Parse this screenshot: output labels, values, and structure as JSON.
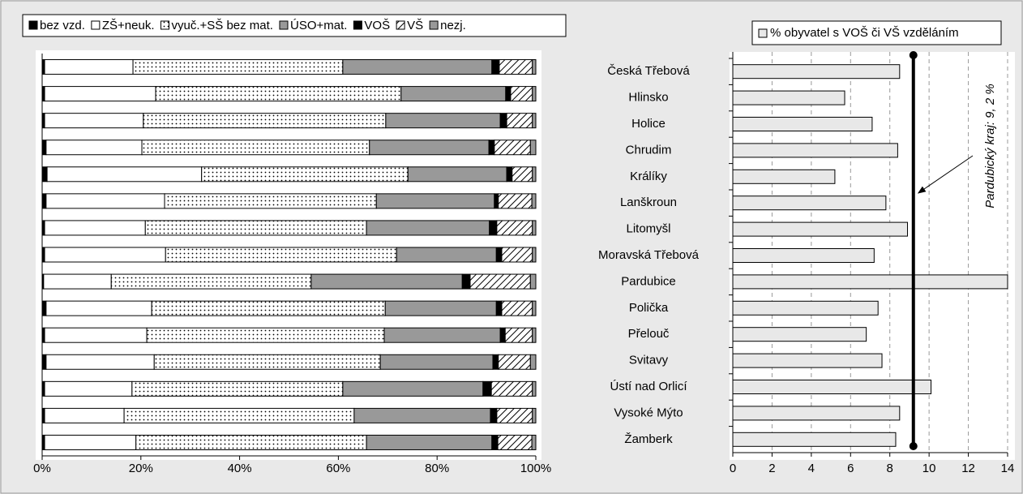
{
  "chart_data": [
    {
      "type": "stacked-bar-horizontal",
      "series": [
        {
          "name": "bez vzd.",
          "color": "#000000",
          "values": [
            0.5,
            0.5,
            0.5,
            0.8,
            1.0,
            0.8,
            0.5,
            0.5,
            0.3,
            0.8,
            0.5,
            0.8,
            0.5,
            0.5,
            0.5
          ]
        },
        {
          "name": "ZŠ+neuk.",
          "color": "#ffffff",
          "values": [
            17.9,
            22.5,
            20.0,
            19.4,
            31.3,
            24.0,
            20.4,
            24.5,
            13.7,
            21.4,
            20.7,
            21.9,
            17.7,
            16.1,
            18.5
          ]
        },
        {
          "name": "vyuč.+SŠ bez mat.",
          "color": "#ffffff",
          "pattern": "dots",
          "values": [
            42.5,
            49.7,
            49.1,
            46.1,
            41.8,
            42.9,
            44.8,
            46.8,
            40.5,
            47.3,
            48.1,
            45.8,
            42.7,
            46.6,
            46.7
          ]
        },
        {
          "name": "ÚSO+mat.",
          "color": "#999999",
          "values": [
            30.2,
            21.2,
            23.2,
            24.2,
            20.0,
            23.9,
            24.9,
            20.2,
            30.6,
            22.5,
            23.5,
            22.8,
            28.4,
            27.6,
            25.4
          ]
        },
        {
          "name": "VOŠ",
          "color": "#000000",
          "values": [
            1.5,
            1.0,
            1.3,
            1.1,
            1.1,
            0.8,
            1.5,
            1.1,
            1.6,
            1.1,
            1.0,
            1.1,
            1.7,
            1.3,
            1.2
          ]
        },
        {
          "name": "VŠ",
          "color": "#ffffff",
          "pattern": "hatch",
          "values": [
            6.7,
            4.4,
            5.2,
            7.3,
            4.1,
            6.8,
            7.2,
            6.2,
            12.2,
            6.2,
            5.5,
            6.5,
            8.3,
            7.2,
            6.9
          ]
        },
        {
          "name": "nezj.",
          "color": "#999999",
          "values": [
            0.7,
            0.7,
            0.7,
            1.1,
            0.7,
            0.8,
            0.7,
            0.7,
            1.1,
            0.7,
            0.7,
            1.1,
            0.7,
            0.7,
            0.8
          ]
        }
      ],
      "xlim": [
        0,
        100
      ],
      "xticks": [
        {
          "value": 0,
          "label": "0%"
        },
        {
          "value": 20,
          "label": "20%"
        },
        {
          "value": 40,
          "label": "40%"
        },
        {
          "value": 60,
          "label": "60%"
        },
        {
          "value": 80,
          "label": "80%"
        },
        {
          "value": 100,
          "label": "100%"
        }
      ],
      "grid": false
    },
    {
      "type": "bar-horizontal",
      "categories": [
        "Česká Třebová",
        "Hlinsko",
        "Holice",
        "Chrudim",
        "Králíky",
        "Lanškroun",
        "Litomyšl",
        "Moravská Třebová",
        "Pardubice",
        "Polička",
        "Přelouč",
        "Svitavy",
        "Ústí nad Orlicí",
        "Vysoké Mýto",
        "Žamberk"
      ],
      "series": [
        {
          "name": "% obyvatel s VOŠ či VŠ vzděláním",
          "color": "#e8e8e8",
          "values": [
            8.5,
            5.7,
            7.1,
            8.4,
            5.2,
            7.8,
            8.9,
            7.2,
            14.0,
            7.4,
            6.8,
            7.6,
            10.1,
            8.5,
            8.3
          ]
        }
      ],
      "xlim": [
        0,
        14
      ],
      "xticks": [
        0,
        2,
        4,
        6,
        8,
        10,
        12,
        14
      ],
      "grid": true,
      "reference_line": {
        "value": 9.2,
        "label": "Pardubický kraj: 9, 2 %"
      }
    }
  ]
}
